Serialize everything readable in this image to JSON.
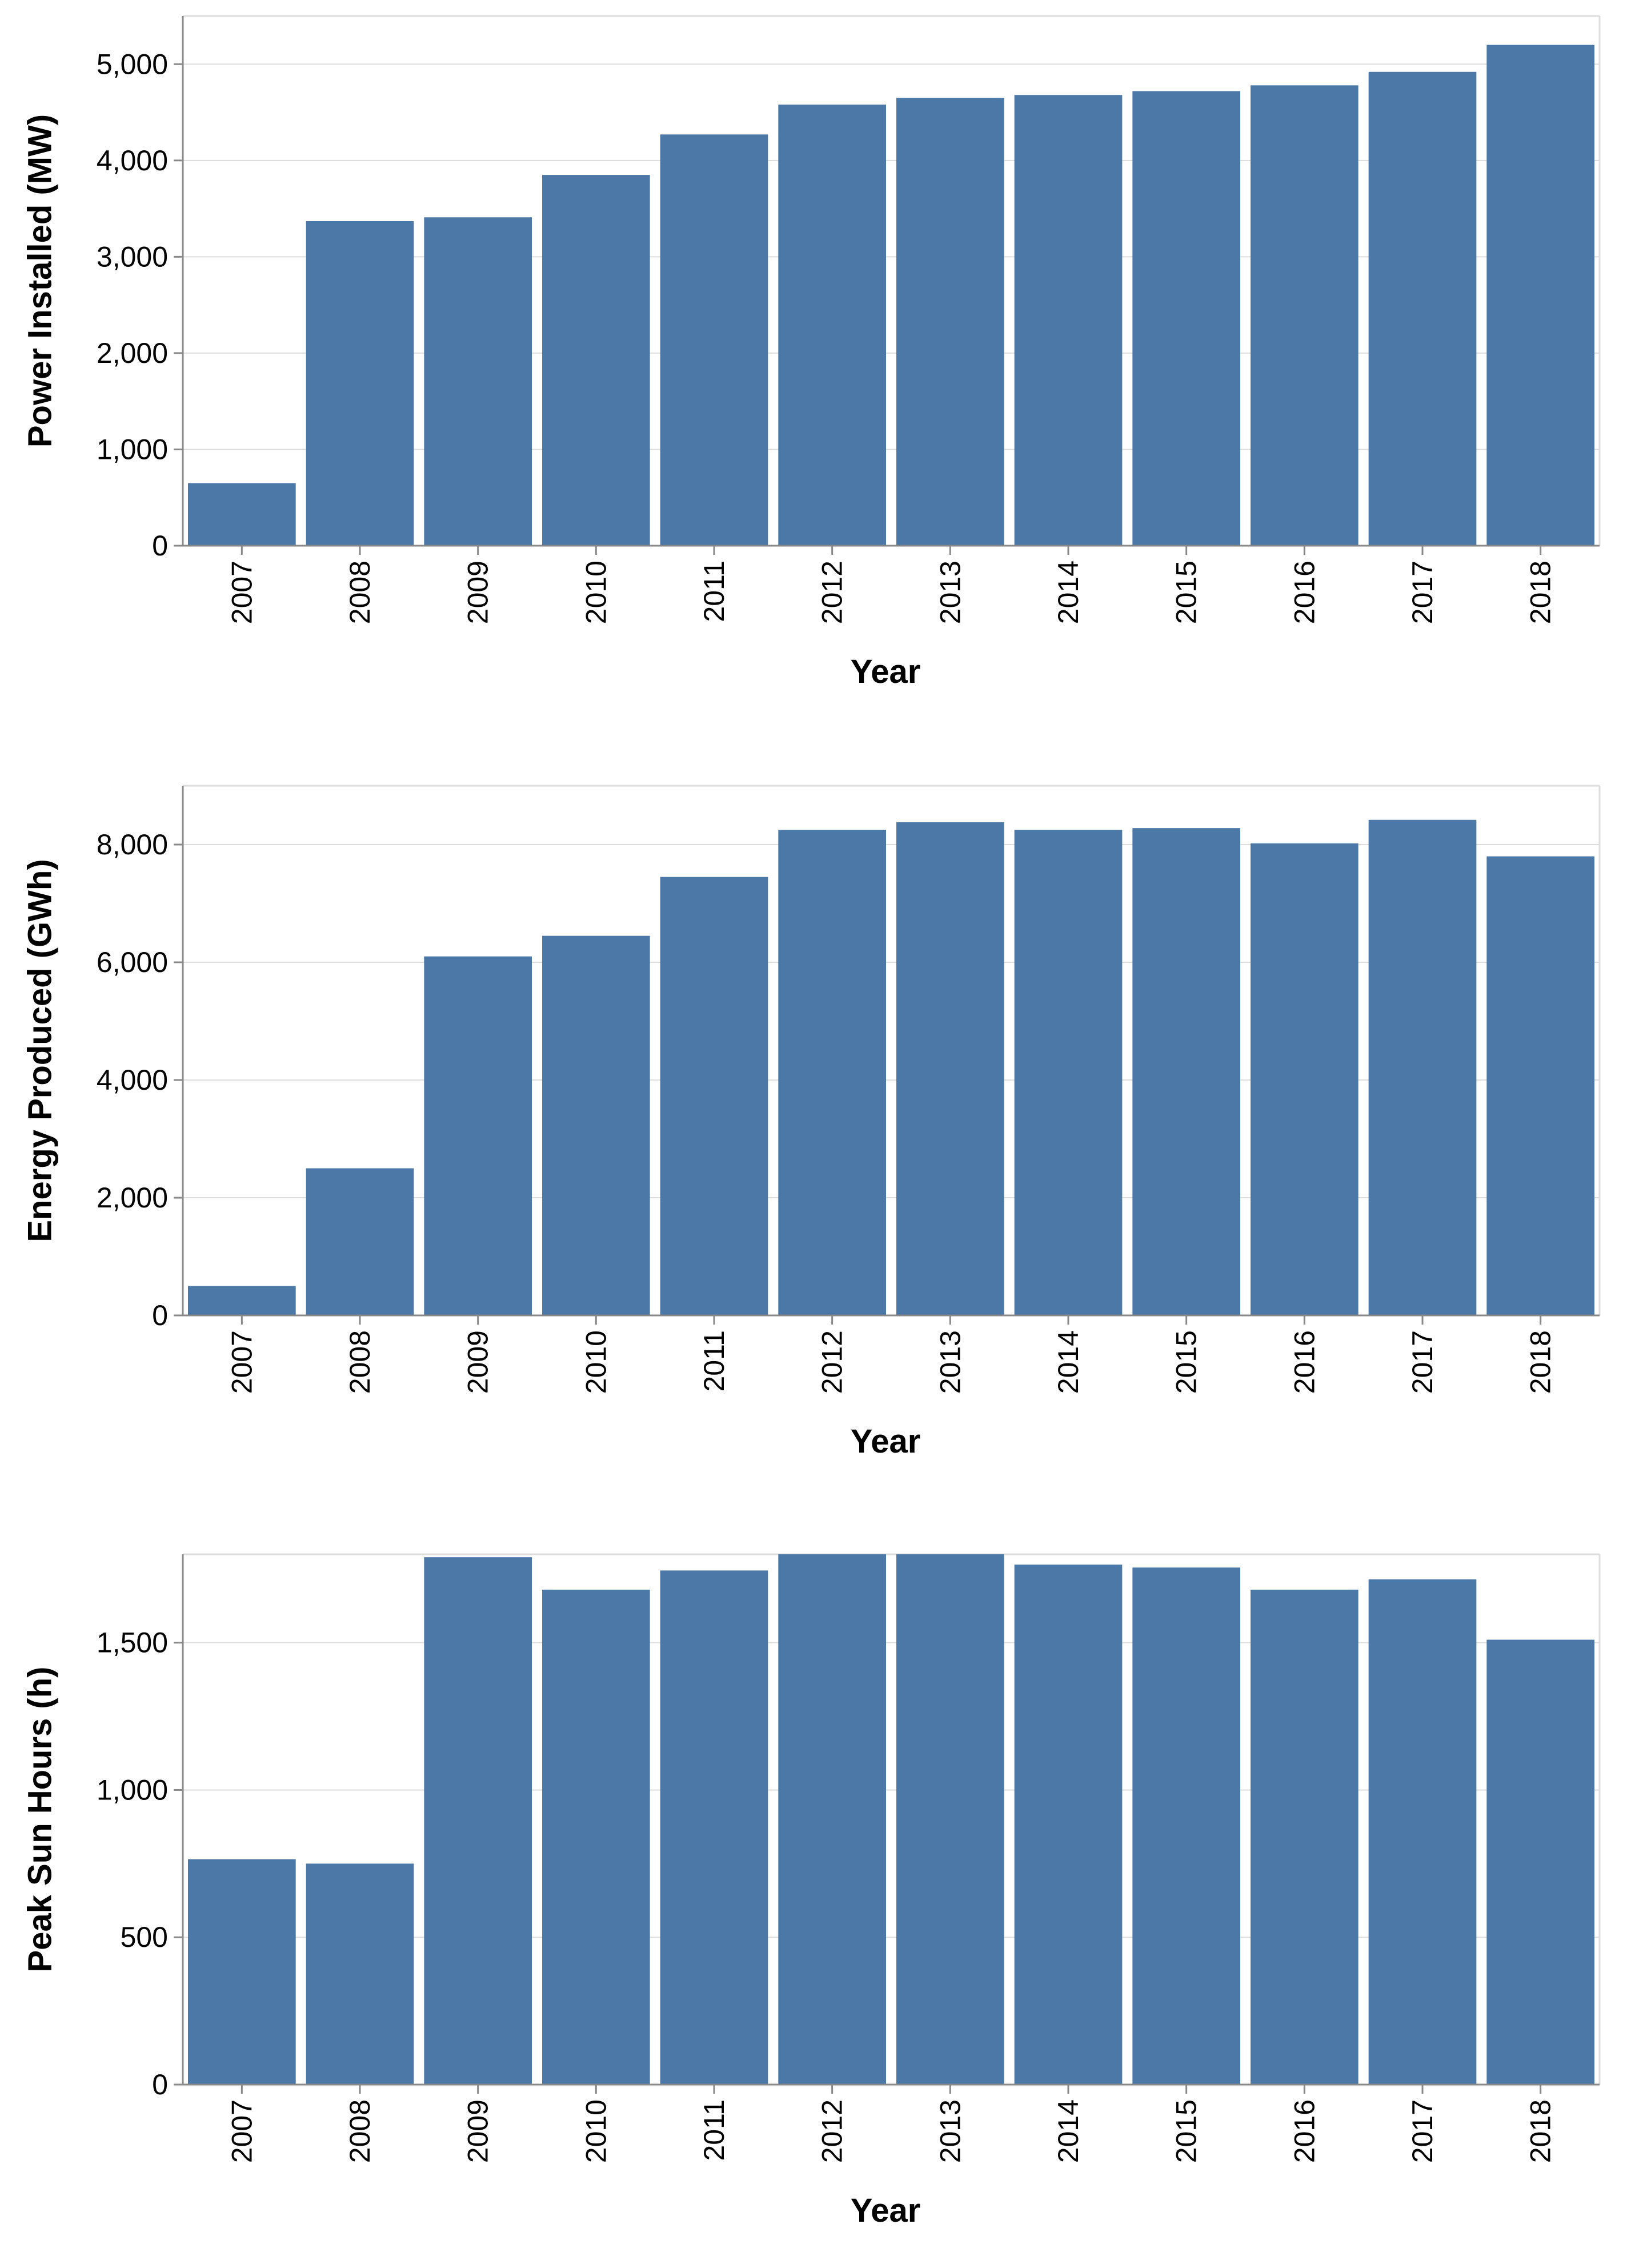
{
  "style": {
    "bar_color": "#4c78a8",
    "grid_color": "#dddddd",
    "axis_color": "#888888",
    "text_color": "#000000"
  },
  "chart_data": [
    {
      "type": "bar",
      "categories": [
        "2007",
        "2008",
        "2009",
        "2010",
        "2011",
        "2012",
        "2013",
        "2014",
        "2015",
        "2016",
        "2017",
        "2018"
      ],
      "values": [
        650,
        3370,
        3410,
        3850,
        4270,
        4580,
        4650,
        4680,
        4720,
        4780,
        4920,
        5200
      ],
      "title": "",
      "xlabel": "Year",
      "ylabel": "Power Installed (MW)",
      "ylim": [
        0,
        5500
      ],
      "yticks": [
        0,
        1000,
        2000,
        3000,
        4000,
        5000
      ],
      "ytick_labels": [
        "0",
        "1,000",
        "2,000",
        "3,000",
        "4,000",
        "5,000"
      ],
      "grid": true
    },
    {
      "type": "bar",
      "categories": [
        "2007",
        "2008",
        "2009",
        "2010",
        "2011",
        "2012",
        "2013",
        "2014",
        "2015",
        "2016",
        "2017",
        "2018"
      ],
      "values": [
        500,
        2500,
        6100,
        6450,
        7450,
        8250,
        8380,
        8250,
        8280,
        8020,
        8420,
        7800
      ],
      "title": "",
      "xlabel": "Year",
      "ylabel": "Energy Produced (GWh)",
      "ylim": [
        0,
        9000
      ],
      "yticks": [
        0,
        2000,
        4000,
        6000,
        8000
      ],
      "ytick_labels": [
        "0",
        "2,000",
        "4,000",
        "6,000",
        "8,000"
      ],
      "grid": true
    },
    {
      "type": "bar",
      "categories": [
        "2007",
        "2008",
        "2009",
        "2010",
        "2011",
        "2012",
        "2013",
        "2014",
        "2015",
        "2016",
        "2017",
        "2018"
      ],
      "values": [
        765,
        750,
        1790,
        1680,
        1745,
        1805,
        1800,
        1765,
        1755,
        1680,
        1715,
        1510
      ],
      "title": "",
      "xlabel": "Year",
      "ylabel": "Peak Sun Hours (h)",
      "ylim": [
        0,
        1800
      ],
      "yticks": [
        0,
        500,
        1000,
        1500
      ],
      "ytick_labels": [
        "0",
        "500",
        "1,000",
        "1,500"
      ],
      "grid": true
    }
  ]
}
